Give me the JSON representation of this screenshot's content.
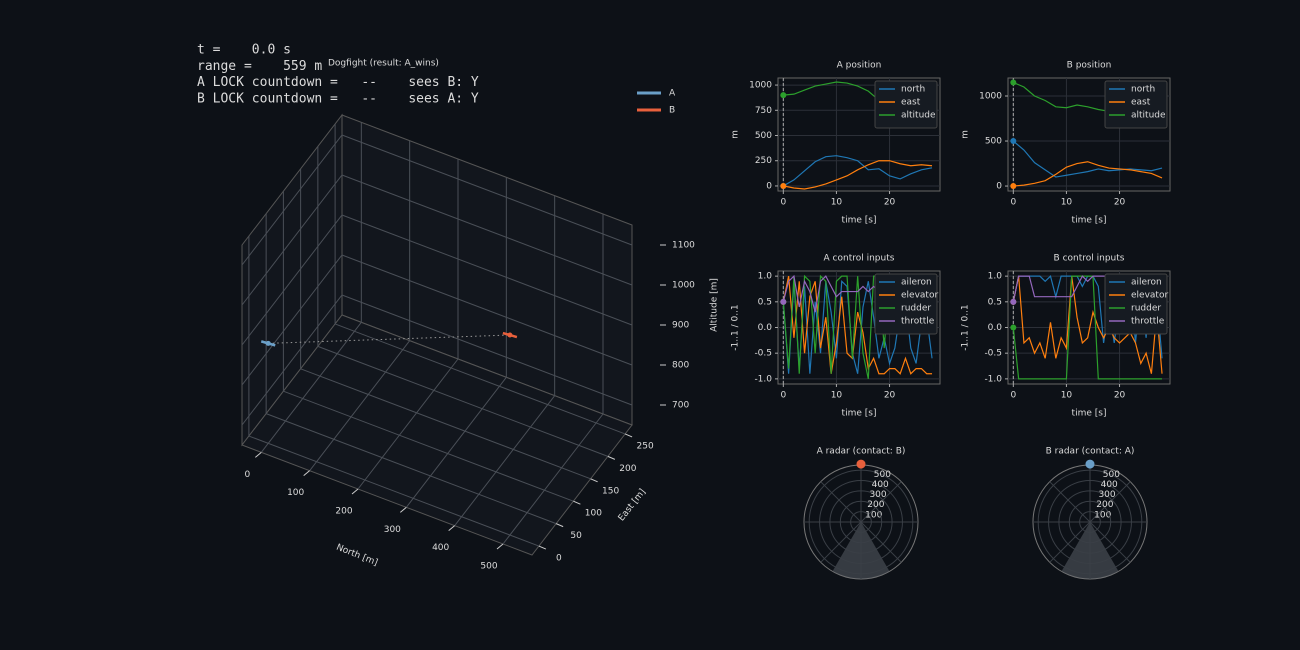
{
  "chart_data": [
    {
      "type": "scatter3d",
      "title": "Dogfight  (result: A_wins)",
      "annotations": [
        "t =    0.0 s",
        "range =    559 m",
        "A LOCK countdown =   --    sees B: Y",
        "B LOCK countdown =   --    sees A: Y"
      ],
      "xlabel": "North [m]",
      "ylabel": "East [m]",
      "zlabel": "Altitude [m]",
      "xlim": [
        -40,
        560
      ],
      "ylim": [
        -20,
        270
      ],
      "zlim": [
        650,
        1150
      ],
      "xticks": [
        0,
        100,
        200,
        300,
        400,
        500
      ],
      "yticks": [
        0,
        50,
        100,
        150,
        200,
        250
      ],
      "zticks": [
        700,
        800,
        900,
        1000,
        1100
      ],
      "legend": "upper right",
      "series": [
        {
          "name": "A",
          "color": "#6a9fc8",
          "x": [
            0
          ],
          "y": [
            0
          ],
          "z": [
            900
          ]
        },
        {
          "name": "B",
          "color": "#e8603c",
          "x": [
            500
          ],
          "y": [
            0
          ],
          "z": [
            1150
          ]
        }
      ]
    },
    {
      "type": "line",
      "title": "A position",
      "xlabel": "time [s]",
      "ylabel": "m",
      "xlim": [
        -1,
        29.5
      ],
      "ylim": [
        -50,
        1070
      ],
      "xticks": [
        0,
        10,
        20
      ],
      "yticks": [
        0,
        250,
        500,
        750,
        1000
      ],
      "cursor": 0,
      "grid": true,
      "legend": "upper right",
      "x": [
        0,
        2,
        4,
        6,
        8,
        10,
        12,
        14,
        16,
        18,
        20,
        22,
        24,
        26,
        28
      ],
      "series": [
        {
          "name": "north",
          "color": "#1f77b4",
          "values": [
            0,
            60,
            150,
            240,
            290,
            300,
            280,
            250,
            160,
            170,
            100,
            70,
            120,
            160,
            180
          ]
        },
        {
          "name": "east",
          "color": "#ff7f0e",
          "values": [
            0,
            -20,
            -30,
            -10,
            20,
            60,
            100,
            160,
            210,
            250,
            250,
            220,
            200,
            210,
            200
          ]
        },
        {
          "name": "altitude",
          "color": "#2ca02c",
          "values": [
            900,
            910,
            950,
            990,
            1010,
            1030,
            1020,
            990,
            940,
            850,
            870,
            860,
            860,
            880,
            760
          ]
        }
      ]
    },
    {
      "type": "line",
      "title": "B position",
      "xlabel": "time [s]",
      "ylabel": "m",
      "xlim": [
        -1,
        29.5
      ],
      "ylim": [
        -55,
        1200
      ],
      "xticks": [
        0,
        10,
        20
      ],
      "yticks": [
        0,
        500,
        1000
      ],
      "cursor": 0,
      "grid": true,
      "legend": "upper right",
      "x": [
        0,
        2,
        4,
        6,
        8,
        10,
        12,
        14,
        16,
        18,
        20,
        22,
        24,
        26,
        28
      ],
      "series": [
        {
          "name": "north",
          "color": "#1f77b4",
          "values": [
            500,
            400,
            260,
            180,
            100,
            120,
            140,
            160,
            190,
            170,
            180,
            190,
            180,
            170,
            200
          ]
        },
        {
          "name": "east",
          "color": "#ff7f0e",
          "values": [
            0,
            10,
            30,
            60,
            130,
            210,
            250,
            270,
            230,
            200,
            190,
            180,
            160,
            140,
            90
          ]
        },
        {
          "name": "altitude",
          "color": "#2ca02c",
          "values": [
            1150,
            1100,
            1000,
            950,
            880,
            870,
            900,
            880,
            850,
            830,
            780,
            780,
            760,
            720,
            720
          ]
        }
      ]
    },
    {
      "type": "line",
      "title": "A control inputs",
      "xlabel": "time [s]",
      "ylabel": "-1..1 / 0..1",
      "xlim": [
        -1,
        29.5
      ],
      "ylim": [
        -1.1,
        1.1
      ],
      "xticks": [
        0,
        10,
        20
      ],
      "yticks": [
        {
          "value": -1,
          "label": "-1.0"
        },
        {
          "value": -0.5,
          "label": "-0.5"
        },
        {
          "value": 0,
          "label": "0.0"
        },
        {
          "value": 0.5,
          "label": "0.5"
        },
        {
          "value": 1,
          "label": "1.0"
        }
      ],
      "cursor": 0,
      "grid": true,
      "legend": "upper right",
      "x": [
        0,
        1,
        2,
        3,
        4,
        5,
        6,
        7,
        8,
        9,
        10,
        11,
        12,
        13,
        14,
        15,
        16,
        17,
        18,
        19,
        20,
        21,
        22,
        23,
        24,
        25,
        26,
        27,
        28
      ],
      "series": [
        {
          "name": "aileron",
          "color": "#1f77b4",
          "values": [
            0.5,
            -0.9,
            0.9,
            -0.8,
            0.8,
            -0.9,
            0.5,
            -0.5,
            0.9,
            0.3,
            -0.6,
            0.9,
            0.8,
            -0.5,
            -0.9,
            0.4,
            0.9,
            0.2,
            -0.6,
            -0.2,
            -0.7,
            -0.4,
            0.3,
            0.5,
            -0.4,
            -0.7,
            0.1,
            0.2,
            -0.6
          ]
        },
        {
          "name": "elevator",
          "color": "#ff7f0e",
          "values": [
            0.5,
            1.0,
            -0.2,
            0.9,
            -0.5,
            0.6,
            0.9,
            -0.4,
            0.2,
            -0.9,
            -0.3,
            0.6,
            -0.5,
            -0.6,
            0.3,
            -0.1,
            -0.8,
            -0.6,
            -0.9,
            -0.9,
            -0.8,
            -0.8,
            -0.9,
            -0.6,
            -0.9,
            -0.8,
            -0.8,
            -0.9,
            -0.9
          ]
        },
        {
          "name": "rudder",
          "color": "#2ca02c",
          "values": [
            0.5,
            -0.8,
            1.0,
            -0.9,
            1.0,
            0.9,
            -0.5,
            1.0,
            0.9,
            -0.9,
            0.9,
            1.0,
            1.0,
            -0.6,
            1.0,
            -0.5,
            -1.0,
            1.0,
            1.0,
            -0.4,
            1.0,
            1.0,
            0.9,
            0.8,
            1.0,
            1.0,
            0.9,
            0.8,
            0.6
          ]
        },
        {
          "name": "throttle",
          "color": "#9467bd",
          "values": [
            0.5,
            0.9,
            1.0,
            0.4,
            0.9,
            0.7,
            0.3,
            0.9,
            1.0,
            0.8,
            0.6,
            0.7,
            0.7,
            0.7,
            0.7,
            0.8,
            0.7,
            0.8,
            0.7,
            0.7,
            0.8,
            0.7,
            0.9,
            0.7,
            0.8,
            0.7,
            0.7,
            0.8,
            0.7
          ]
        }
      ]
    },
    {
      "type": "line",
      "title": "B control inputs",
      "xlabel": "time [s]",
      "ylabel": "-1..1 / 0..1",
      "xlim": [
        -1,
        29.5
      ],
      "ylim": [
        -1.1,
        1.1
      ],
      "xticks": [
        0,
        10,
        20
      ],
      "yticks": [
        {
          "value": -1,
          "label": "-1.0"
        },
        {
          "value": -0.5,
          "label": "-0.5"
        },
        {
          "value": 0,
          "label": "0.0"
        },
        {
          "value": 0.5,
          "label": "0.5"
        },
        {
          "value": 1,
          "label": "1.0"
        }
      ],
      "cursor": 0,
      "grid": true,
      "legend": "upper right",
      "x": [
        0,
        1,
        2,
        3,
        4,
        5,
        6,
        7,
        8,
        9,
        10,
        11,
        12,
        13,
        14,
        15,
        16,
        17,
        18,
        19,
        20,
        21,
        22,
        23,
        24,
        25,
        26,
        27,
        28
      ],
      "series": [
        {
          "name": "aileron",
          "color": "#1f77b4",
          "values": [
            0.5,
            1.0,
            1.0,
            1.0,
            1.0,
            1.0,
            0.9,
            1.0,
            0.6,
            1.0,
            1.0,
            1.0,
            1.0,
            0.8,
            1.0,
            1.0,
            0.8,
            -0.3,
            0.4,
            -0.3,
            0.5,
            1.0,
            1.0,
            -0.3,
            0.8,
            -0.2,
            1.0,
            0.6,
            -0.6
          ]
        },
        {
          "name": "elevator",
          "color": "#ff7f0e",
          "values": [
            0.5,
            1.0,
            -0.3,
            -0.2,
            -0.5,
            -0.3,
            -0.6,
            0.1,
            -0.6,
            -0.2,
            -0.4,
            1.0,
            0.2,
            -0.3,
            -0.2,
            0.3,
            0.0,
            -0.2,
            0.0,
            -0.2,
            -0.3,
            -0.2,
            -0.1,
            -0.3,
            -0.7,
            -0.5,
            -0.9,
            0.3,
            -0.9
          ]
        },
        {
          "name": "rudder",
          "color": "#2ca02c",
          "values": [
            0.0,
            -1.0,
            -1.0,
            -1.0,
            -1.0,
            -1.0,
            -1.0,
            -1.0,
            -1.0,
            -1.0,
            -1.0,
            1.0,
            1.0,
            1.0,
            1.0,
            1.0,
            -1.0,
            -1.0,
            -1.0,
            -1.0,
            -1.0,
            -1.0,
            -1.0,
            -1.0,
            -1.0,
            -1.0,
            -1.0,
            -1.0,
            -1.0
          ]
        },
        {
          "name": "throttle",
          "color": "#9467bd",
          "values": [
            0.5,
            1.0,
            1.0,
            1.0,
            0.6,
            0.6,
            0.6,
            0.6,
            0.6,
            0.6,
            0.6,
            0.6,
            0.8,
            1.0,
            0.9,
            1.0,
            1.0,
            1.0,
            1.0,
            1.0,
            1.0,
            1.0,
            1.0,
            1.0,
            1.0,
            1.0,
            1.0,
            1.0,
            1.0
          ]
        }
      ]
    },
    {
      "type": "polar",
      "title": "A radar (contact: B)",
      "rlim": [
        0,
        550
      ],
      "rticks": [
        100,
        200,
        300,
        400,
        500
      ],
      "contact": {
        "color": "#e8603c",
        "bearing": 0,
        "range": 559
      },
      "blind_sector": [
        150,
        210
      ]
    },
    {
      "type": "polar",
      "title": "B radar (contact: A)",
      "rlim": [
        0,
        550
      ],
      "rticks": [
        100,
        200,
        300,
        400,
        500
      ],
      "contact": {
        "color": "#6a9fc8",
        "bearing": 0,
        "range": 559
      },
      "blind_sector": [
        150,
        210
      ]
    }
  ]
}
